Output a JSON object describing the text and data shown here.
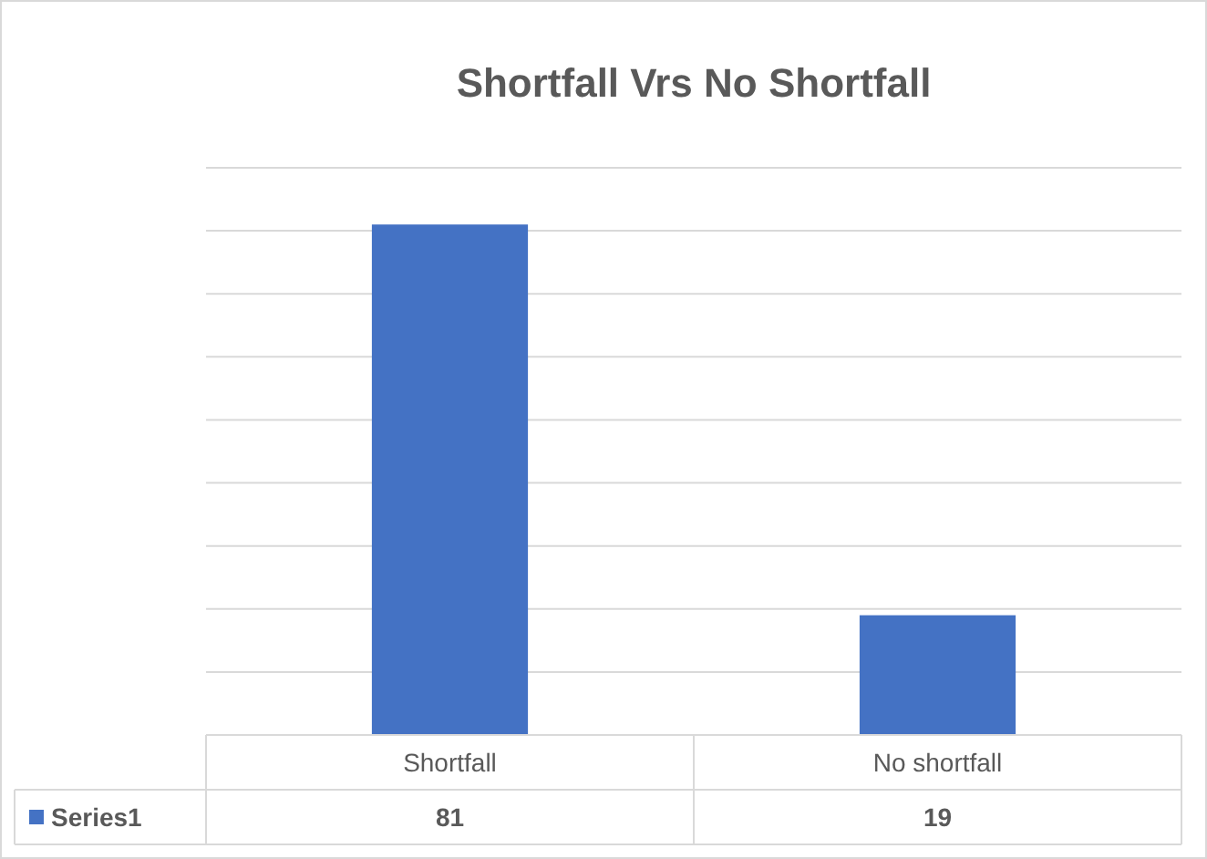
{
  "chart_data": {
    "type": "bar",
    "title": "Shortfall Vrs No Shortfall",
    "categories": [
      "Shortfall",
      "No shortfall"
    ],
    "series": [
      {
        "name": "Series1",
        "color": "#4472c4",
        "values": [
          81,
          19
        ]
      }
    ],
    "ylim": [
      0,
      90
    ],
    "yticks": [
      {
        "value": 0,
        "label": null
      },
      {
        "value": 10,
        "label": null
      },
      {
        "value": 20,
        "label": null
      },
      {
        "value": 30,
        "label": null
      },
      {
        "value": 40,
        "label": null
      },
      {
        "value": 50,
        "label": null
      },
      {
        "value": 60,
        "label": null
      },
      {
        "value": 70,
        "label": null
      },
      {
        "value": 80,
        "label": null
      },
      {
        "value": 90,
        "label": null
      }
    ],
    "grid": true,
    "data_labels": true
  }
}
